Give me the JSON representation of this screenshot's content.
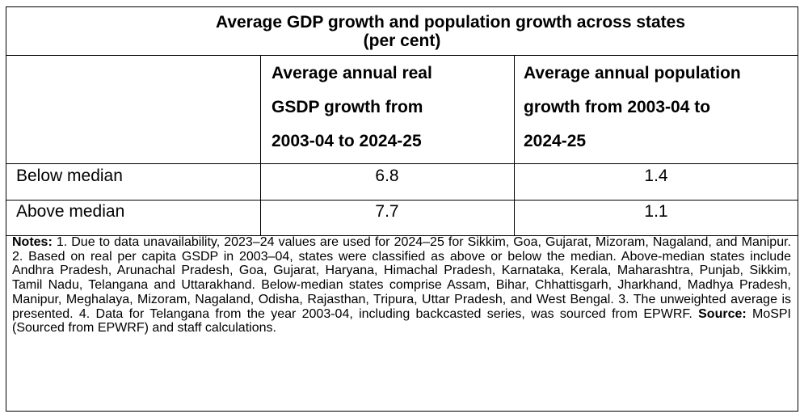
{
  "table": {
    "title_line1": "Average GDP growth and population growth across states",
    "title_line2": "(per cent)",
    "columns": [
      "",
      "Average annual real GSDP growth from 2003-04 to 2024-25",
      "Average annual population growth from 2003-04 to 2024-25"
    ],
    "column_header_lines": [
      [
        "Average annual real",
        "GSDP growth from",
        "2003-04 to 2024-25"
      ],
      [
        "Average annual population",
        "growth from 2003-04 to",
        "2024-25"
      ]
    ],
    "rows": [
      {
        "label": "Below median",
        "gsdp_growth": "6.8",
        "population_growth": "1.4"
      },
      {
        "label": "Above median",
        "gsdp_growth": "7.7",
        "population_growth": "1.1"
      }
    ],
    "notes_label": "Notes:",
    "notes_text": " 1. Due to data unavailability, 2023–24 values are used for 2024–25 for Sikkim, Goa, Gujarat, Mizoram, Nagaland, and Manipur. 2. Based on real per capita GSDP in 2003–04, states were classified as above or below the median. Above-median states include Andhra Pradesh, Arunachal Pradesh, Goa, Gujarat, Haryana, Himachal Pradesh, Karnataka, Kerala, Maharashtra, Punjab, Sikkim, Tamil Nadu, Telangana and Uttarakhand. Below-median states comprise Assam, Bihar, Chhattisgarh, Jharkhand, Madhya Pradesh, Manipur, Meghalaya, Mizoram, Nagaland, Odisha, Rajasthan, Tripura, Uttar Pradesh, and West Bengal. 3. The unweighted average is presented. 4. Data for Telangana from the year 2003-04, including backcasted series, was sourced from EPWRF. ",
    "source_label": "Source:",
    "source_text": " MoSPI (Sourced from EPWRF) and staff calculations."
  }
}
